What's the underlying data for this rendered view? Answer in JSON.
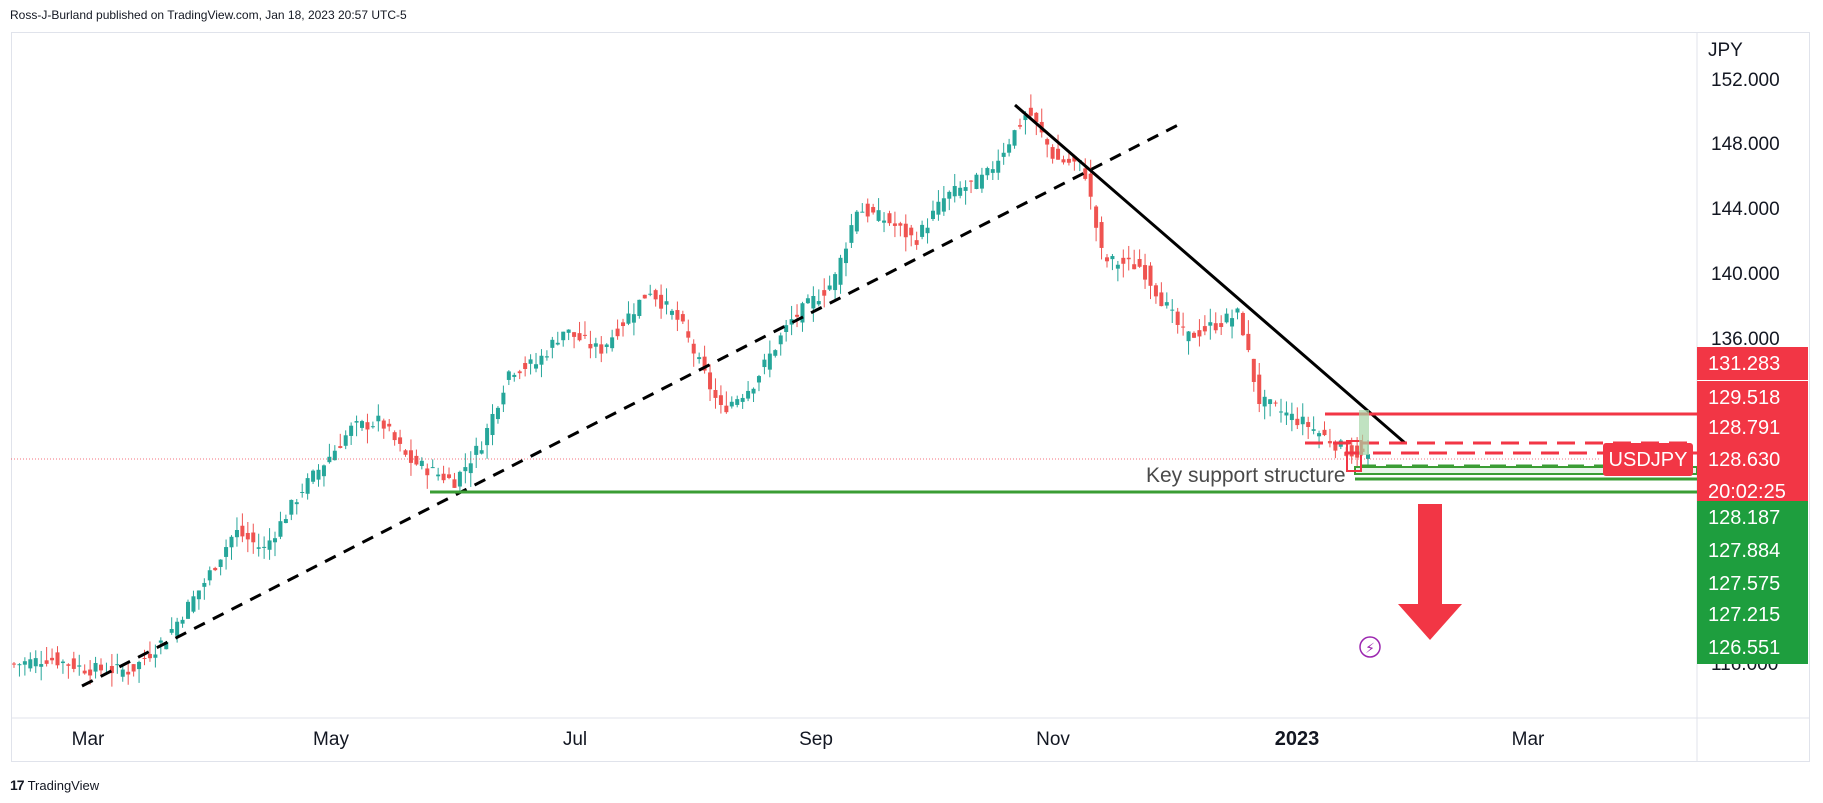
{
  "attribution": "Ross-J-Burland published on TradingView.com, Jan 18, 2023 20:57 UTC-5",
  "footer": {
    "brand": "TradingView"
  },
  "colors": {
    "up": "#26a69a",
    "down": "#ef5350",
    "axis_red": "#f23645",
    "axis_green": "#1e9e3e",
    "trend": "#000000"
  },
  "chart_data": {
    "type": "candlestick",
    "symbol": "USDJPY",
    "currency_label": "JPY",
    "y_tick_labels": [
      "152.000",
      "148.000",
      "144.000",
      "140.000",
      "136.000",
      "116.000"
    ],
    "x_tick_labels": [
      {
        "label": "Mar",
        "bold": false
      },
      {
        "label": "May",
        "bold": false
      },
      {
        "label": "Jul",
        "bold": false
      },
      {
        "label": "Sep",
        "bold": false
      },
      {
        "label": "Nov",
        "bold": false
      },
      {
        "label": "2023",
        "bold": true
      },
      {
        "label": "Mar",
        "bold": false
      }
    ],
    "price_badges": [
      {
        "value": "131.283",
        "color": "#f23645"
      },
      {
        "value": "129.518",
        "color": "#f23645"
      },
      {
        "value": "128.791",
        "color": "#f23645"
      },
      {
        "value": "128.630",
        "color": "#f23645",
        "symbol": "USDJPY",
        "countdown": "20:02:25"
      },
      {
        "value": "128.187",
        "color": "#1e9e3e"
      },
      {
        "value": "127.884",
        "color": "#1e9e3e"
      },
      {
        "value": "127.575",
        "color": "#1e9e3e"
      },
      {
        "value": "127.215",
        "color": "#1e9e3e"
      },
      {
        "value": "126.551",
        "color": "#1e9e3e"
      }
    ],
    "annotations": {
      "support_text": "Key support structure",
      "arrow": "down"
    },
    "price_path": [
      [
        "Feb 1",
        115.2
      ],
      [
        "Feb 10",
        115.6
      ],
      [
        "Feb 20",
        114.9
      ],
      [
        "Mar 1",
        114.8
      ],
      [
        "Mar 10",
        116.9
      ],
      [
        "Mar 20",
        120.5
      ],
      [
        "Mar 28",
        123.8
      ],
      [
        "Apr 5",
        122.6
      ],
      [
        "Apr 15",
        126.5
      ],
      [
        "Apr 28",
        130.4
      ],
      [
        "May 5",
        130.8
      ],
      [
        "May 12",
        128.4
      ],
      [
        "May 24",
        127.0
      ],
      [
        "Jun 1",
        129.5
      ],
      [
        "Jun 8",
        134.0
      ],
      [
        "Jun 15",
        134.4
      ],
      [
        "Jun 22",
        136.5
      ],
      [
        "Jul 1",
        135.2
      ],
      [
        "Jul 14",
        139.0
      ],
      [
        "Jul 22",
        136.9
      ],
      [
        "Aug 2",
        131.5
      ],
      [
        "Aug 10",
        133.0
      ],
      [
        "Aug 20",
        137.0
      ],
      [
        "Sep 1",
        139.5
      ],
      [
        "Sep 7",
        144.0
      ],
      [
        "Sep 15",
        143.2
      ],
      [
        "Sep 22",
        142.0
      ],
      [
        "Sep 30",
        144.7
      ],
      [
        "Oct 10",
        145.9
      ],
      [
        "Oct 21",
        150.0
      ],
      [
        "Oct 28",
        147.0
      ],
      [
        "Nov 5",
        146.6
      ],
      [
        "Nov 10",
        140.8
      ],
      [
        "Nov 20",
        140.4
      ],
      [
        "Dec 1",
        136.0
      ],
      [
        "Dec 15",
        137.5
      ],
      [
        "Dec 20",
        132.1
      ],
      [
        "Jan 2",
        130.6
      ],
      [
        "Jan 12",
        129.0
      ],
      [
        "Jan 18",
        128.6
      ]
    ]
  }
}
